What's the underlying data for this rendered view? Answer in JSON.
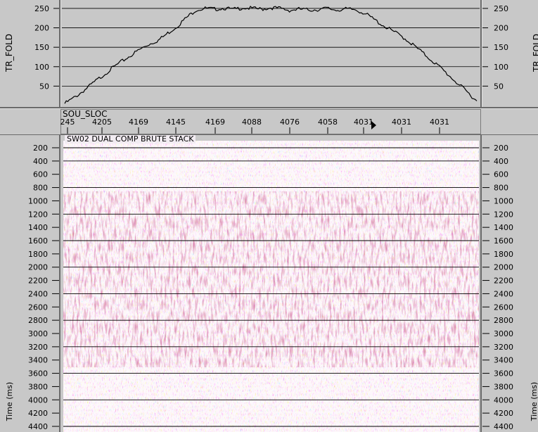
{
  "fold_panel": {
    "ylabel": "TR_FOLD",
    "y_ticks": [
      50,
      100,
      150,
      200,
      250
    ],
    "ylim": [
      0,
      268
    ]
  },
  "header_bar": {
    "field_name": "SOU_SLOC",
    "ticks": [
      "245",
      "4205",
      "4169",
      "4145",
      "4169",
      "4088",
      "4076",
      "4058",
      "4031",
      "4031",
      "4031"
    ]
  },
  "section": {
    "title": "SW02 DUAL  COMP BRUTE STACK",
    "ylabel": "Time (ms)",
    "y_ticks": [
      200,
      400,
      600,
      800,
      1000,
      1200,
      1400,
      1600,
      1800,
      2000,
      2200,
      2400,
      2600,
      2800,
      3000,
      3200,
      3400,
      3600,
      3800,
      4000,
      4200,
      4400
    ],
    "time_range_ms": [
      100,
      4500
    ]
  },
  "chart_data": {
    "type": "line",
    "title": "",
    "xlabel": "SOU_SLOC",
    "ylabel": "TR_FOLD",
    "ylim": [
      0,
      268
    ],
    "grid": true,
    "series": [
      {
        "values": [
          5,
          20,
          38,
          57,
          76,
          95,
          112,
          128,
          144,
          158,
          168,
          186,
          204,
          226,
          246,
          250,
          248,
          251,
          247,
          252,
          250,
          248,
          252,
          250,
          245,
          248,
          246,
          247,
          250,
          246,
          248,
          247,
          238,
          222,
          206,
          192,
          178,
          160,
          140,
          120,
          100,
          78,
          56,
          34,
          12
        ]
      }
    ]
  },
  "colors": {
    "background": "#c8c8c8",
    "section_bg": "#f4eef4",
    "positive": "#c0283a",
    "negative": "#2a3ac8",
    "grid": "#000000"
  }
}
